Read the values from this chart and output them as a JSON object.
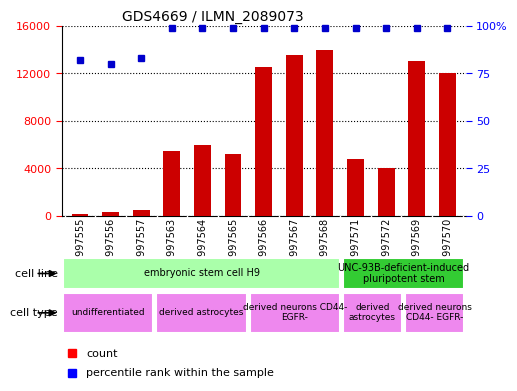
{
  "title": "GDS4669 / ILMN_2089073",
  "samples": [
    "GSM997555",
    "GSM997556",
    "GSM997557",
    "GSM997563",
    "GSM997564",
    "GSM997565",
    "GSM997566",
    "GSM997567",
    "GSM997568",
    "GSM997571",
    "GSM997572",
    "GSM997569",
    "GSM997570"
  ],
  "counts": [
    200,
    300,
    500,
    5500,
    6000,
    5200,
    12500,
    13500,
    14000,
    4800,
    4000,
    13000,
    12000
  ],
  "percentiles": [
    82,
    80,
    83,
    99,
    99,
    99,
    99,
    99,
    99,
    99,
    99,
    99,
    99
  ],
  "bar_color": "#cc0000",
  "dot_color": "#0000cc",
  "ylim_left": [
    0,
    16000
  ],
  "ylim_right": [
    0,
    100
  ],
  "yticks_left": [
    0,
    4000,
    8000,
    12000,
    16000
  ],
  "yticks_right": [
    0,
    25,
    50,
    75,
    100
  ],
  "ytick_right_labels": [
    "0",
    "25",
    "50",
    "75",
    "100%"
  ],
  "cell_line_groups": [
    {
      "label": "embryonic stem cell H9",
      "start": 0,
      "end": 9,
      "color": "#aaffaa"
    },
    {
      "label": "UNC-93B-deficient-induced\npluripotent stem",
      "start": 9,
      "end": 13,
      "color": "#33cc33"
    }
  ],
  "cell_type_groups": [
    {
      "label": "undifferentiated",
      "start": 0,
      "end": 3,
      "color": "#ee88ee"
    },
    {
      "label": "derived astrocytes",
      "start": 3,
      "end": 6,
      "color": "#ee88ee"
    },
    {
      "label": "derived neurons CD44-\nEGFR-",
      "start": 6,
      "end": 9,
      "color": "#ee88ee"
    },
    {
      "label": "derived\nastrocytes",
      "start": 9,
      "end": 11,
      "color": "#ee88ee"
    },
    {
      "label": "derived neurons\nCD44- EGFR-",
      "start": 11,
      "end": 13,
      "color": "#ee88ee"
    }
  ],
  "background_color": "#ffffff",
  "plot_bg_color": "#ffffff",
  "tick_bg_color": "#cccccc"
}
